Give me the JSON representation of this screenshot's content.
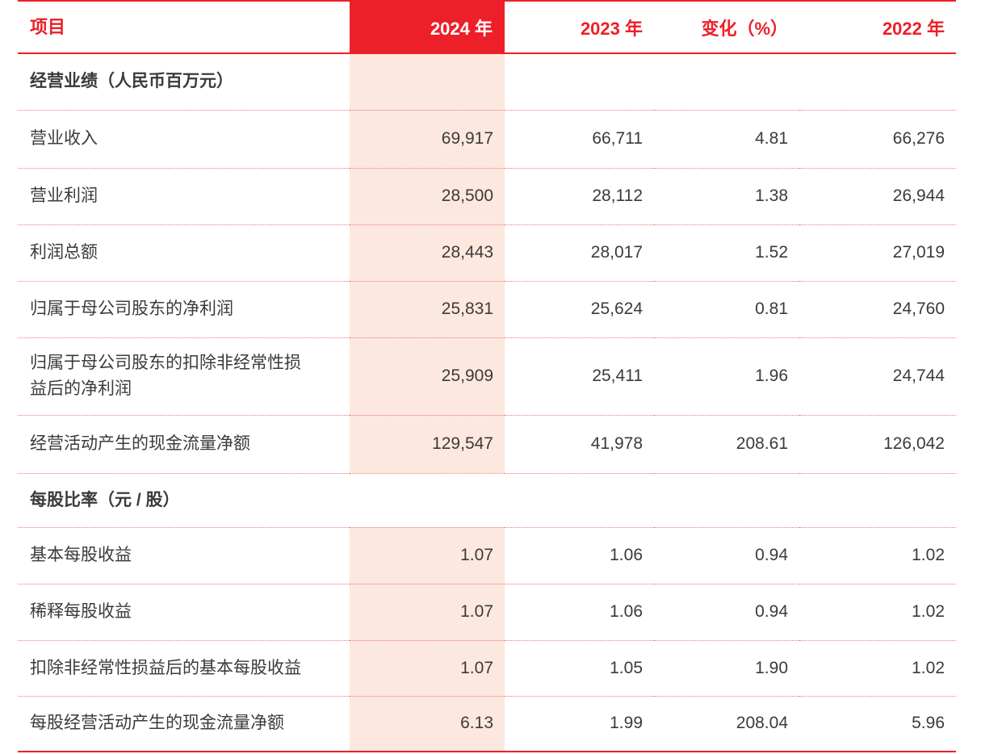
{
  "colors": {
    "accent_red": "#ed1f28",
    "highlight_pink": "#fce8df",
    "text_dark": "#3d3a39",
    "dotted_line": "#ec7b76"
  },
  "table": {
    "header": {
      "item": "项目",
      "y2024": "2024 年",
      "y2023": "2023 年",
      "change": "变化（%）",
      "y2022": "2022 年"
    },
    "sections": [
      {
        "title": "经营业绩（人民币百万元）",
        "rows": [
          {
            "label": "营业收入",
            "y2024": "69,917",
            "y2023": "66,711",
            "change": "4.81",
            "y2022": "66,276"
          },
          {
            "label": "营业利润",
            "y2024": "28,500",
            "y2023": "28,112",
            "change": "1.38",
            "y2022": "26,944"
          },
          {
            "label": "利润总额",
            "y2024": "28,443",
            "y2023": "28,017",
            "change": "1.52",
            "y2022": "27,019"
          },
          {
            "label": "归属于母公司股东的净利润",
            "y2024": "25,831",
            "y2023": "25,624",
            "change": "0.81",
            "y2022": "24,760"
          },
          {
            "label": "归属于母公司股东的扣除非经常性损\n益后的净利润",
            "y2024": "25,909",
            "y2023": "25,411",
            "change": "1.96",
            "y2022": "24,744"
          },
          {
            "label": "经营活动产生的现金流量净额",
            "y2024": "129,547",
            "y2023": "41,978",
            "change": "208.61",
            "y2022": "126,042"
          }
        ]
      },
      {
        "title": "每股比率（元 / 股）",
        "rows": [
          {
            "label": "基本每股收益",
            "y2024": "1.07",
            "y2023": "1.06",
            "change": "0.94",
            "y2022": "1.02"
          },
          {
            "label": "稀释每股收益",
            "y2024": "1.07",
            "y2023": "1.06",
            "change": "0.94",
            "y2022": "1.02"
          },
          {
            "label": "扣除非经常性损益后的基本每股收益",
            "y2024": "1.07",
            "y2023": "1.05",
            "change": "1.90",
            "y2022": "1.02"
          },
          {
            "label": "每股经营活动产生的现金流量净额",
            "y2024": "6.13",
            "y2023": "1.99",
            "change": "208.04",
            "y2022": "5.96"
          }
        ]
      }
    ]
  }
}
